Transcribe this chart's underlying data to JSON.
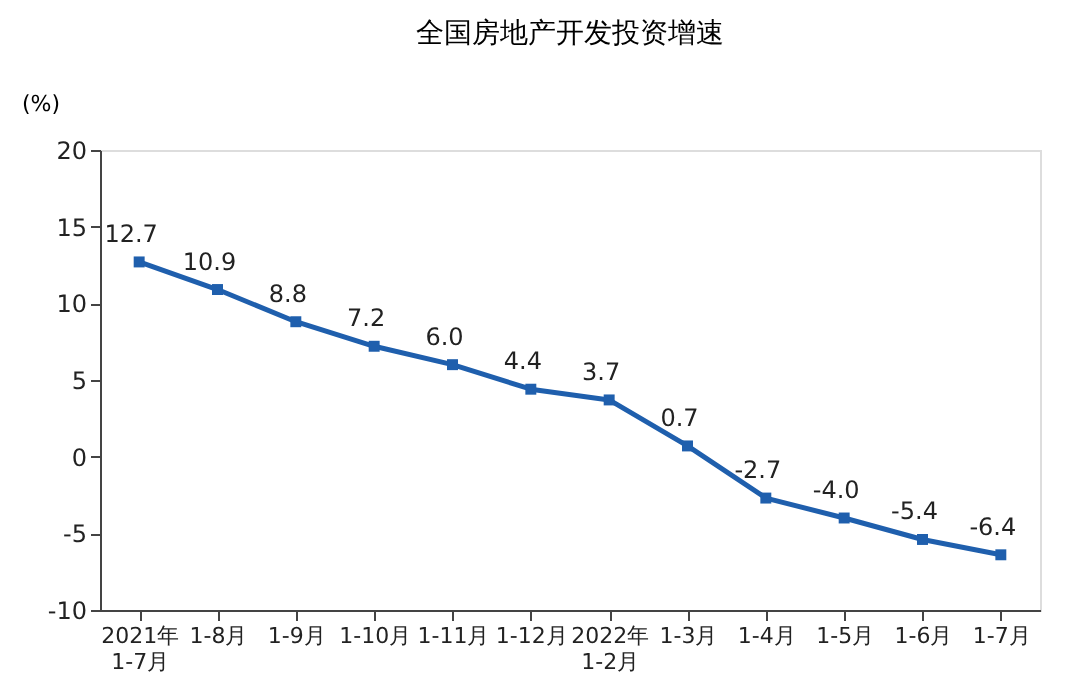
{
  "chart_data": {
    "type": "line",
    "title": "全国房地产开发投资增速",
    "ylabel": "(%)",
    "categories": [
      "2021年\n1-7月",
      "1-8月",
      "1-9月",
      "1-10月",
      "1-11月",
      "1-12月",
      "2022年\n1-2月",
      "1-3月",
      "1-4月",
      "1-5月",
      "1-6月",
      "1-7月"
    ],
    "series": [
      {
        "color": "#1f5fad",
        "values": [
          12.7,
          10.9,
          8.8,
          7.2,
          6.0,
          4.4,
          3.7,
          0.7,
          -2.7,
          -4.0,
          -5.4,
          -6.4
        ],
        "value_labels": [
          "12.7",
          "10.9",
          "8.8",
          "7.2",
          "6.0",
          "4.4",
          "3.7",
          "0.7",
          "-2.7",
          "-4.0",
          "-5.4",
          "-6.4"
        ]
      }
    ],
    "ylim": [
      -10,
      20
    ],
    "yticks": [
      -10,
      -5,
      0,
      5,
      10,
      15,
      20
    ],
    "grid": false,
    "marker": "square",
    "line_style": "solid"
  }
}
